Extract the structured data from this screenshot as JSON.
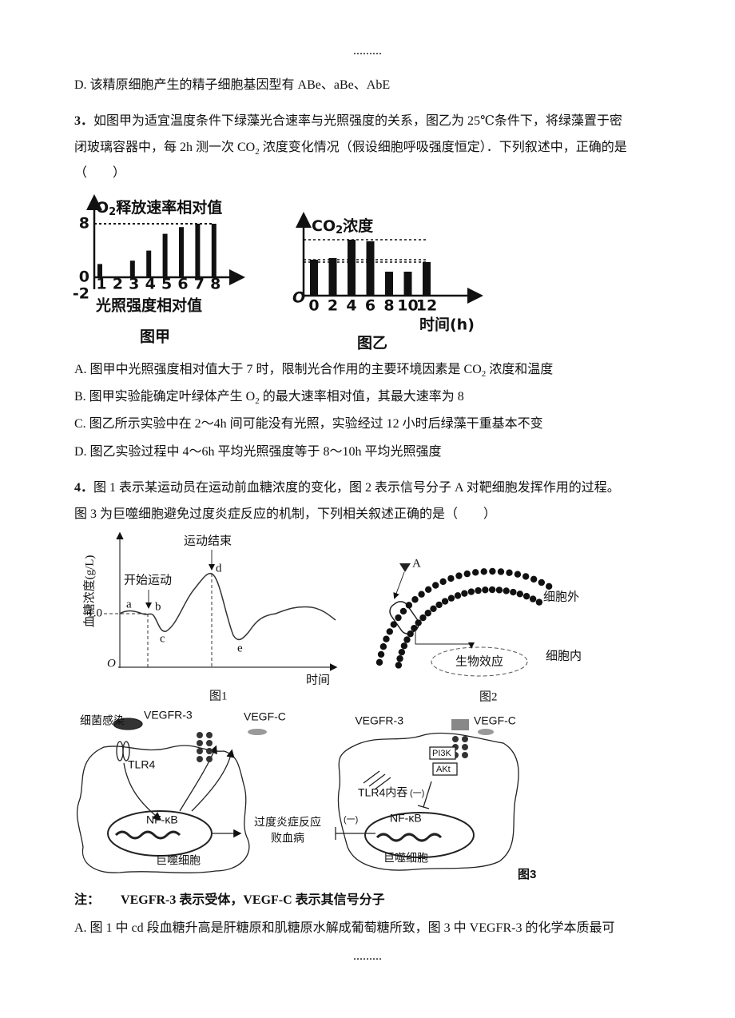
{
  "header": {
    "dots": "........."
  },
  "question2": {
    "option_d": "D. 该精原细胞产生的精子细胞基因型有 ABe、aBe、AbE"
  },
  "question3": {
    "number": "3．",
    "stem_line1": "如图甲为适宜温度条件下绿藻光合速率与光照强度的关系，图乙为 25℃条件下，将绿藻置于密",
    "stem_line2": [
      "闭玻璃容器中，每 2h 测一次 CO",
      "2",
      " 浓度变化情况（假设细胞呼吸强度恒定）．下列叙述中，正确的是"
    ],
    "blank": "（　　）",
    "figure_a": {
      "type": "bar",
      "title": [
        "O",
        "2",
        "释放速率相对值"
      ],
      "x_label": "光照强度相对值",
      "caption": "图甲",
      "categories": [
        1,
        2,
        3,
        4,
        5,
        6,
        7,
        8
      ],
      "values": [
        2,
        0,
        2.5,
        4,
        6.5,
        7.5,
        8,
        8
      ],
      "yticks": [
        -2,
        0,
        8
      ],
      "color": "#111"
    },
    "figure_b": {
      "type": "bar",
      "title": [
        "CO",
        "2",
        "浓度"
      ],
      "origin": "O",
      "x_label": "时间(h)",
      "caption": "图乙",
      "categories": [
        0,
        2,
        4,
        6,
        8,
        10,
        12
      ],
      "values": [
        45,
        47,
        70,
        68,
        30,
        30,
        42
      ],
      "color": "#111"
    },
    "options": [
      [
        "A. 图甲中光照强度相对值大于 7 时，限制光合作用的主要环境因素是 CO",
        "2",
        " 浓度和温度"
      ],
      [
        "B. 图甲实验能确定叶绿体产生 O",
        "2",
        " 的最大速率相对值，其最大速率为 8"
      ],
      "C. 图乙所示实验中在 2～4h 间可能没有光照，实验经过 12 小时后绿藻干重基本不变",
      "D. 图乙实验过程中 4～6h 平均光照强度等于 8～10h 平均光照强度"
    ]
  },
  "question4": {
    "number": "4．",
    "stem_line1": "图 1 表示某运动员在运动前血糖浓度的变化，图 2 表示信号分子 A 对靶细胞发挥作用的过程。",
    "stem_line2": "图 3 为巨噬细胞避免过度炎症反应的机制，下列相关叙述正确的是（　　）",
    "figure_1": {
      "y_label": "血糖浓度(g/L)",
      "y_tick": "1.0",
      "origin": "O",
      "x_label": "时间",
      "start_label": "开始运动",
      "end_label": "运动结束",
      "points": [
        "a",
        "b",
        "c",
        "d",
        "e"
      ],
      "caption": "图1"
    },
    "figure_2": {
      "signal": "A",
      "outside": "细胞外",
      "inside": "细胞内",
      "effect": "生物效应",
      "caption": "图2"
    },
    "figure_3": {
      "left": {
        "infection": "细菌感染",
        "tlr4": "TLR4",
        "receptor": "VEGFR-3",
        "signal": "VEGF-C",
        "nfkb": "NF-κB",
        "cell": "巨噬细胞"
      },
      "outcome": [
        "过度炎症反应",
        "败血病"
      ],
      "right": {
        "receptor": "VEGFR-3",
        "signal": "VEGF-C",
        "pi3k": "PI3K",
        "akt": "AKt",
        "endocytosis": "TLR4内吞",
        "inhibit_1": "(一)",
        "nfkb": "NF-κB",
        "inhibit_2": "(一)",
        "cell": "巨噬细胞"
      },
      "caption": "图3"
    },
    "note": {
      "label": "注：",
      "text": "VEGFR-3 表示受体，VEGF-C 表示其信号分子"
    },
    "option_a": "A. 图 1 中 cd 段血糖升高是肝糖原和肌糖原水解成葡萄糖所致，图 3 中 VEGFR-3 的化学本质最可"
  },
  "footer": {
    "dots": "........."
  }
}
